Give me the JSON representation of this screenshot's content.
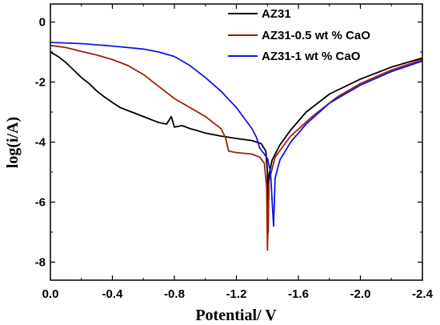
{
  "chart_data": {
    "type": "line",
    "xlabel": "Potential/ V",
    "ylabel": "log(i/A)",
    "xlim": [
      0.0,
      -2.4
    ],
    "ylim": [
      -8.6,
      0.6
    ],
    "xticks": [
      0.0,
      -0.4,
      -0.8,
      -1.2,
      -1.6,
      -2.0,
      -2.4
    ],
    "xtick_labels": [
      "0.0",
      "-0.4",
      "-0.8",
      "-1.2",
      "-1.6",
      "-2.0",
      "-2.4"
    ],
    "yticks": [
      0,
      -2,
      -4,
      -6,
      -8
    ],
    "ytick_labels": [
      "0",
      "-2",
      "-4",
      "-6",
      "-8"
    ],
    "grid": false,
    "legend_position": "top-right",
    "series": [
      {
        "name": "AZ31",
        "color": "#000000",
        "points": [
          [
            0.0,
            -1.0
          ],
          [
            -0.05,
            -1.15
          ],
          [
            -0.1,
            -1.35
          ],
          [
            -0.15,
            -1.6
          ],
          [
            -0.2,
            -1.85
          ],
          [
            -0.25,
            -2.05
          ],
          [
            -0.3,
            -2.3
          ],
          [
            -0.35,
            -2.5
          ],
          [
            -0.4,
            -2.68
          ],
          [
            -0.45,
            -2.85
          ],
          [
            -0.5,
            -2.95
          ],
          [
            -0.55,
            -3.05
          ],
          [
            -0.6,
            -3.15
          ],
          [
            -0.65,
            -3.25
          ],
          [
            -0.7,
            -3.35
          ],
          [
            -0.75,
            -3.4
          ],
          [
            -0.78,
            -3.15
          ],
          [
            -0.8,
            -3.5
          ],
          [
            -0.85,
            -3.45
          ],
          [
            -0.9,
            -3.55
          ],
          [
            -0.95,
            -3.62
          ],
          [
            -1.0,
            -3.7
          ],
          [
            -1.1,
            -3.8
          ],
          [
            -1.2,
            -3.88
          ],
          [
            -1.3,
            -3.95
          ],
          [
            -1.36,
            -4.05
          ],
          [
            -1.39,
            -4.3
          ],
          [
            -1.4,
            -5.0
          ],
          [
            -1.405,
            -7.0
          ],
          [
            -1.41,
            -5.1
          ],
          [
            -1.43,
            -4.6
          ],
          [
            -1.48,
            -4.1
          ],
          [
            -1.55,
            -3.6
          ],
          [
            -1.65,
            -3.0
          ],
          [
            -1.8,
            -2.4
          ],
          [
            -2.0,
            -1.9
          ],
          [
            -2.2,
            -1.5
          ],
          [
            -2.4,
            -1.2
          ]
        ]
      },
      {
        "name": "AZ31-0.5 wt % CaO",
        "color": "#a01e0a",
        "points": [
          [
            0.0,
            -0.78
          ],
          [
            -0.1,
            -0.85
          ],
          [
            -0.2,
            -0.98
          ],
          [
            -0.3,
            -1.1
          ],
          [
            -0.4,
            -1.25
          ],
          [
            -0.5,
            -1.45
          ],
          [
            -0.6,
            -1.75
          ],
          [
            -0.7,
            -2.15
          ],
          [
            -0.8,
            -2.55
          ],
          [
            -0.9,
            -2.85
          ],
          [
            -1.0,
            -3.15
          ],
          [
            -1.05,
            -3.35
          ],
          [
            -1.1,
            -3.55
          ],
          [
            -1.13,
            -3.85
          ],
          [
            -1.15,
            -4.3
          ],
          [
            -1.2,
            -4.35
          ],
          [
            -1.3,
            -4.4
          ],
          [
            -1.35,
            -4.5
          ],
          [
            -1.38,
            -4.7
          ],
          [
            -1.395,
            -5.5
          ],
          [
            -1.4,
            -7.6
          ],
          [
            -1.41,
            -5.3
          ],
          [
            -1.45,
            -4.5
          ],
          [
            -1.55,
            -3.8
          ],
          [
            -1.7,
            -3.1
          ],
          [
            -1.85,
            -2.5
          ],
          [
            -2.0,
            -2.05
          ],
          [
            -2.2,
            -1.6
          ],
          [
            -2.4,
            -1.25
          ]
        ]
      },
      {
        "name": "AZ31-1 wt % CaO",
        "color": "#1414e6",
        "points": [
          [
            0.0,
            -0.68
          ],
          [
            -0.2,
            -0.72
          ],
          [
            -0.4,
            -0.8
          ],
          [
            -0.6,
            -0.9
          ],
          [
            -0.7,
            -1.0
          ],
          [
            -0.8,
            -1.15
          ],
          [
            -0.9,
            -1.45
          ],
          [
            -1.0,
            -1.85
          ],
          [
            -1.1,
            -2.3
          ],
          [
            -1.2,
            -2.85
          ],
          [
            -1.25,
            -3.2
          ],
          [
            -1.3,
            -3.55
          ],
          [
            -1.33,
            -3.85
          ],
          [
            -1.35,
            -4.2
          ],
          [
            -1.38,
            -4.4
          ],
          [
            -1.4,
            -4.55
          ],
          [
            -1.42,
            -5.0
          ],
          [
            -1.44,
            -6.8
          ],
          [
            -1.45,
            -5.2
          ],
          [
            -1.48,
            -4.6
          ],
          [
            -1.55,
            -4.0
          ],
          [
            -1.65,
            -3.4
          ],
          [
            -1.8,
            -2.7
          ],
          [
            -2.0,
            -2.1
          ],
          [
            -2.2,
            -1.65
          ],
          [
            -2.4,
            -1.3
          ]
        ]
      }
    ]
  }
}
